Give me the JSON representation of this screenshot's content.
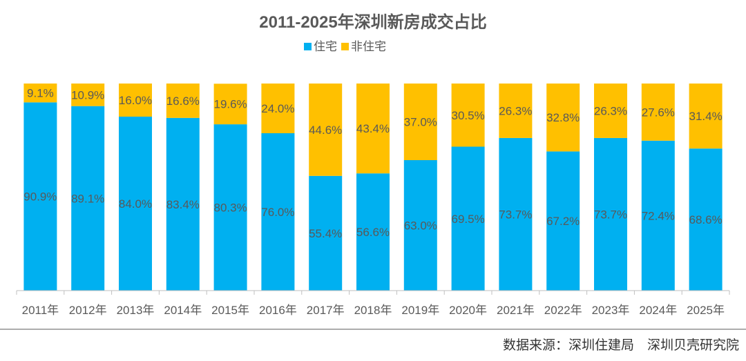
{
  "chart_data": {
    "type": "bar",
    "stacked": true,
    "title": "2011-2025年深圳新房成交占比",
    "categories": [
      "2011年",
      "2012年",
      "2013年",
      "2014年",
      "2015年",
      "2016年",
      "2017年",
      "2018年",
      "2019年",
      "2020年",
      "2021年",
      "2022年",
      "2023年",
      "2024年",
      "2025年"
    ],
    "series": [
      {
        "name": "住宅",
        "color": "#00B0F0",
        "values": [
          90.9,
          89.1,
          84.0,
          83.4,
          80.3,
          76.0,
          55.4,
          56.6,
          63.0,
          69.5,
          73.7,
          67.2,
          73.7,
          72.4,
          68.6
        ]
      },
      {
        "name": "非住宅",
        "color": "#FFC000",
        "values": [
          9.1,
          10.9,
          16.0,
          16.6,
          19.6,
          24.0,
          44.6,
          43.4,
          37.0,
          30.5,
          26.3,
          32.8,
          26.3,
          27.6,
          31.4
        ]
      }
    ],
    "ylim": [
      0,
      100
    ],
    "value_format": "%",
    "data_labels": true,
    "legend": "top",
    "grid": false
  },
  "source": "数据来源：深圳住建局　深圳贝壳研究院"
}
